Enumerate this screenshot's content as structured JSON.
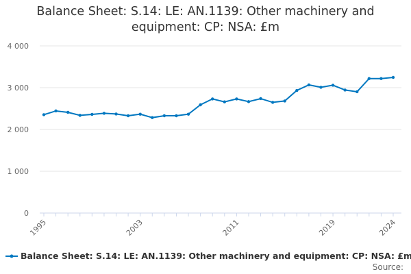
{
  "chart_data": {
    "type": "line",
    "title": "Balance Sheet: S.14: LE: AN.1139: Other machinery and equipment: CP: NSA: £m",
    "xlabel": "",
    "ylabel": "",
    "ylim": [
      0,
      4000
    ],
    "xlim": [
      1995,
      2024
    ],
    "y_ticks": [
      "0",
      "1 000",
      "2 000",
      "3 000",
      "4 000"
    ],
    "x_ticks": [
      "1995",
      "2003",
      "2011",
      "2019",
      "2024"
    ],
    "grid": "horizontal",
    "legend_placement": "bottom",
    "color": "#0077c0",
    "x": [
      1995,
      1996,
      1997,
      1998,
      1999,
      2000,
      2001,
      2002,
      2003,
      2004,
      2005,
      2006,
      2007,
      2008,
      2009,
      2010,
      2011,
      2012,
      2013,
      2014,
      2015,
      2016,
      2017,
      2018,
      2019,
      2020,
      2021,
      2022,
      2023,
      2024
    ],
    "series": [
      {
        "name": "Balance Sheet: S.14: LE: AN.1139: Other machinery and equipment: CP: NSA: £m",
        "values": [
          2354,
          2443,
          2410,
          2338,
          2361,
          2387,
          2370,
          2328,
          2366,
          2284,
          2328,
          2328,
          2366,
          2590,
          2731,
          2661,
          2731,
          2666,
          2738,
          2649,
          2682,
          2934,
          3066,
          3010,
          3059,
          2944,
          2902,
          3218,
          3218,
          3246
        ]
      }
    ]
  },
  "source_label": "Source:"
}
